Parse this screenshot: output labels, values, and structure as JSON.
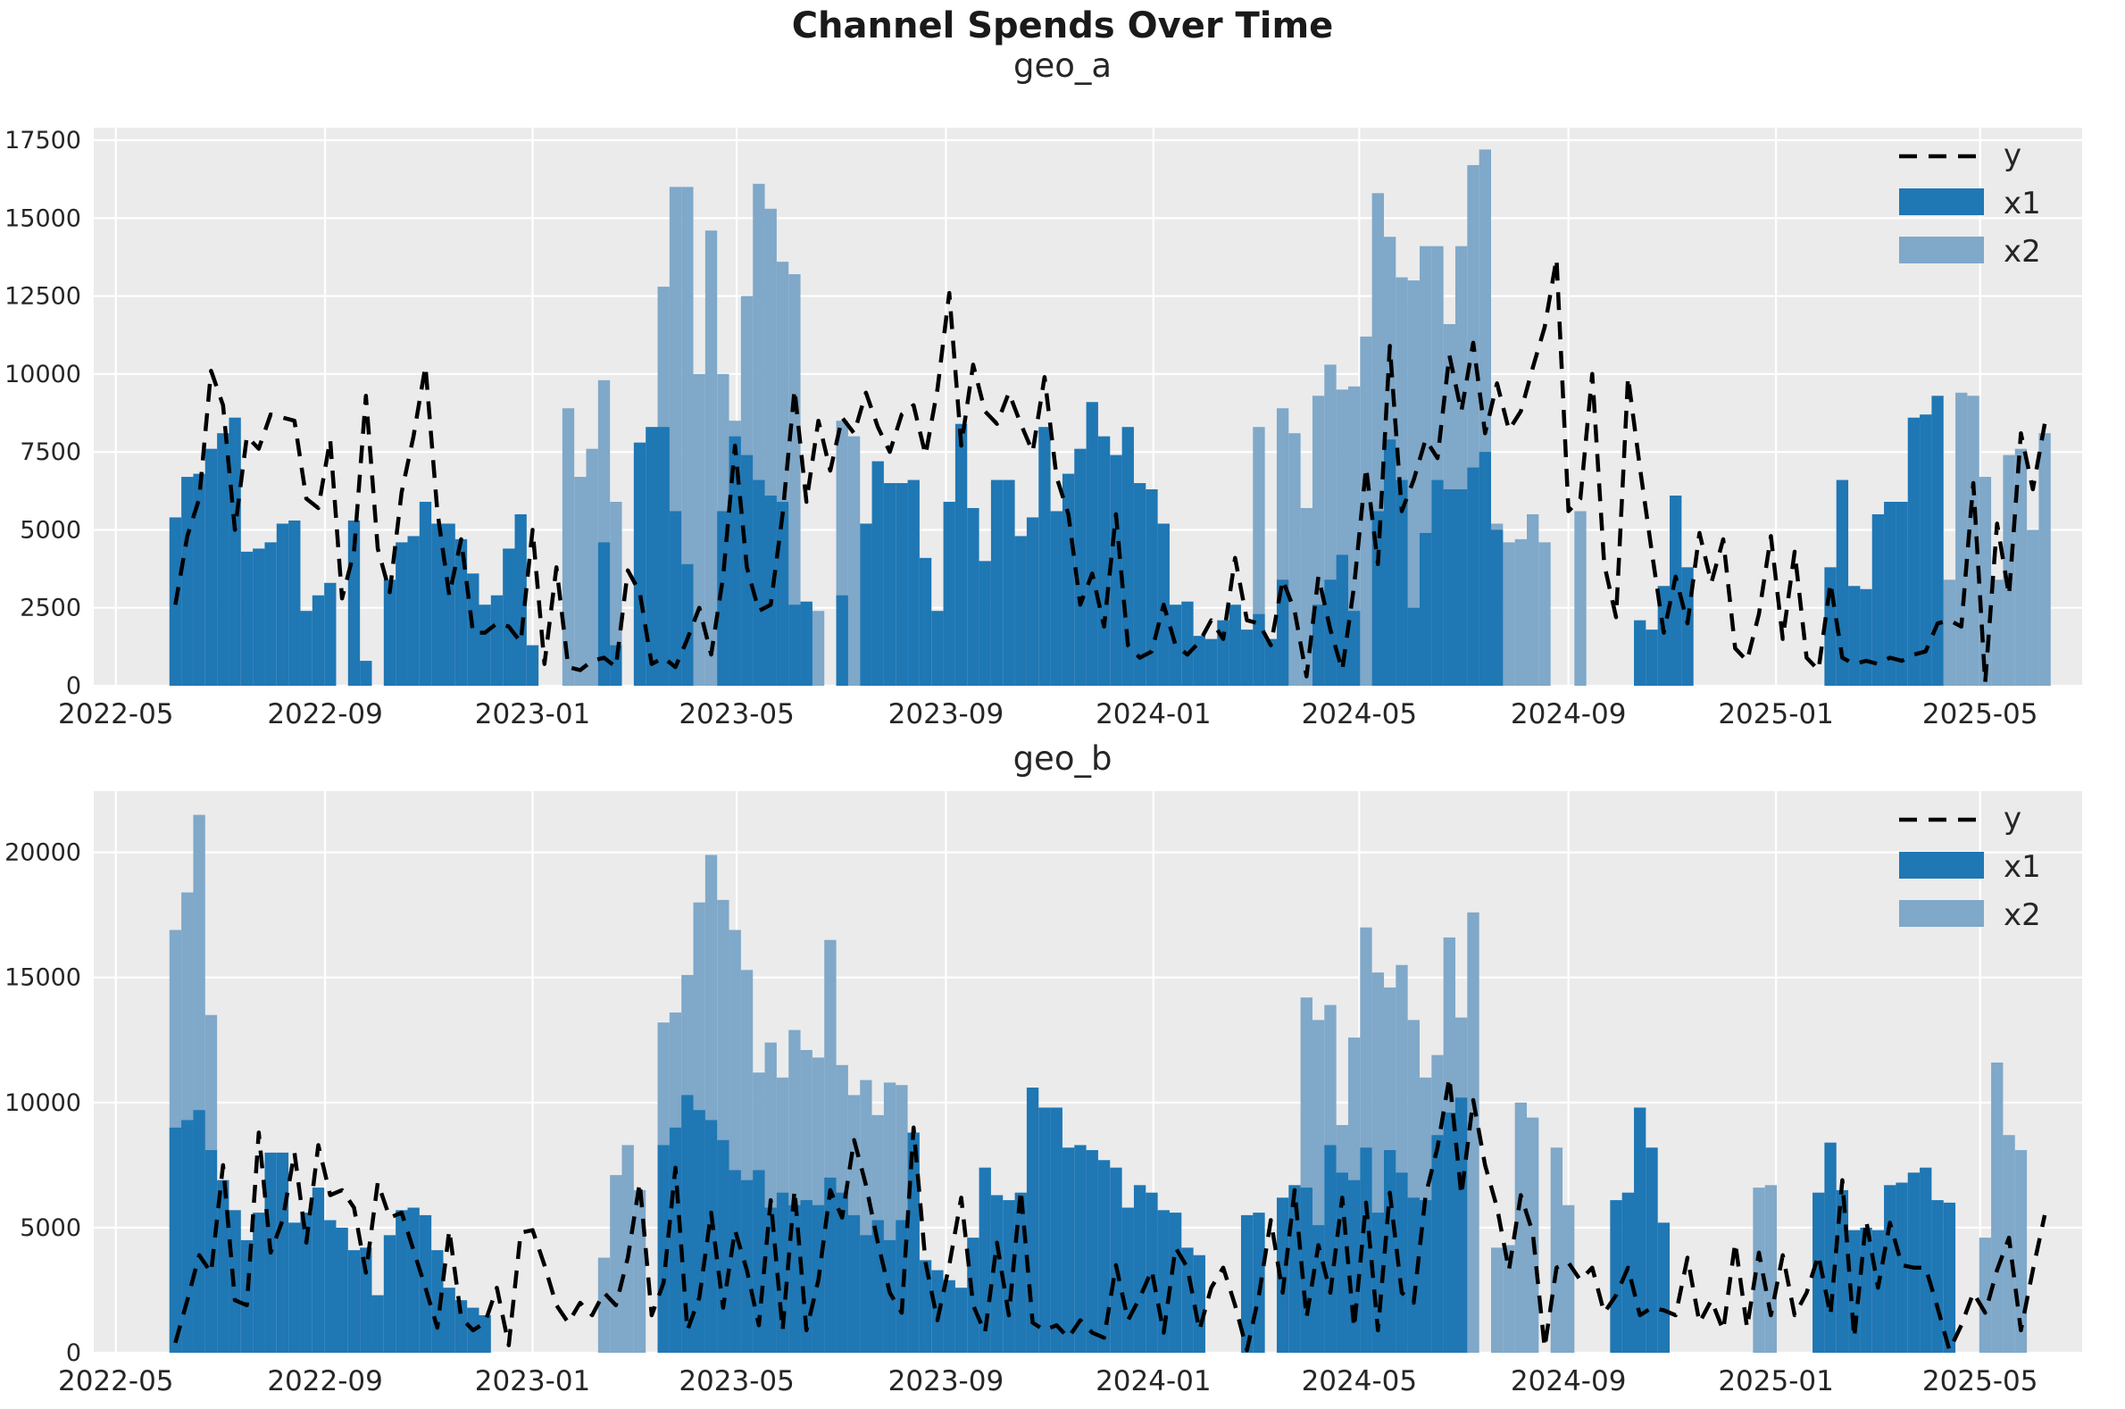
{
  "figure": {
    "title": "Channel Spends Over Time"
  },
  "colors": {
    "plot_background": "#ebebeb",
    "gridline": "#ffffff",
    "line_y": "#000000",
    "bar_x1": "#1f77b4",
    "bar_x2": "#7fa8c9",
    "tick_text": "#262626",
    "legend_text": "#262626"
  },
  "chart_data": [
    {
      "type": "bar",
      "title": "geo_a",
      "x_start": "2022-06-05",
      "x_step_days": 7,
      "x_axis_ticks": [
        "2022-05",
        "2022-09",
        "2023-01",
        "2023-05",
        "2023-09",
        "2024-01",
        "2024-05",
        "2024-09",
        "2025-01",
        "2025-05"
      ],
      "y_axis_ticks": [
        0,
        2500,
        5000,
        7500,
        10000,
        12500,
        15000,
        17500
      ],
      "ylim": [
        0,
        17900
      ],
      "grid": true,
      "legend_position": "upper-right",
      "legend": [
        "y",
        "x1",
        "x2"
      ],
      "series": [
        {
          "name": "y",
          "kind": "line",
          "values": [
            2600,
            4800,
            6000,
            10100,
            9000,
            5000,
            8000,
            7600,
            8700,
            8600,
            8500,
            6000,
            5700,
            7900,
            2800,
            4300,
            9300,
            4400,
            3000,
            6200,
            8000,
            10250,
            5600,
            2900,
            4700,
            1700,
            1700,
            2000,
            1900,
            1400,
            5000,
            700,
            3800,
            600,
            500,
            800,
            900,
            600,
            3700,
            3000,
            700,
            900,
            600,
            1500,
            2500,
            1000,
            3500,
            7700,
            3800,
            2400,
            2600,
            5500,
            9500,
            5900,
            8500,
            6900,
            8600,
            8100,
            9400,
            8300,
            7500,
            8700,
            9000,
            7400,
            9500,
            12600,
            7700,
            10300,
            8800,
            8400,
            9400,
            8400,
            7500,
            9900,
            6700,
            5500,
            2600,
            3600,
            1900,
            5500,
            1300,
            900,
            1100,
            2600,
            1300,
            1000,
            1400,
            2100,
            1500,
            4100,
            2100,
            2000,
            1300,
            3400,
            2400,
            300,
            3500,
            1800,
            500,
            3200,
            7000,
            3900,
            10900,
            5600,
            6600,
            7900,
            7300,
            10600,
            8800,
            11000,
            8100,
            9700,
            8200,
            8800,
            10200,
            11500,
            13700,
            5600,
            6000,
            10000,
            3900,
            2200,
            9900,
            7000,
            4300,
            1700,
            3500,
            2000,
            4900,
            3300,
            4700,
            1200,
            800,
            2300,
            4800,
            1500,
            4300,
            900,
            500,
            3300,
            900,
            700,
            800,
            700,
            900,
            800,
            1000,
            1100,
            2000,
            2100,
            1900,
            6500,
            100,
            5200,
            2900,
            8100,
            6300,
            8400
          ]
        },
        {
          "name": "x1",
          "kind": "bar",
          "values": [
            5400,
            6700,
            6800,
            7600,
            8100,
            8600,
            4300,
            4400,
            4600,
            5200,
            5300,
            2400,
            2900,
            3300,
            0,
            5300,
            800,
            0,
            3400,
            4600,
            4800,
            5900,
            5200,
            5200,
            4700,
            3600,
            2600,
            2900,
            4400,
            5500,
            1300,
            0,
            0,
            0,
            0,
            0,
            4600,
            1300,
            0,
            7800,
            8300,
            8300,
            5600,
            3900,
            0,
            0,
            5600,
            8000,
            7400,
            6600,
            6100,
            5900,
            2600,
            2700,
            0,
            0,
            2900,
            0,
            5200,
            7200,
            6500,
            6500,
            6600,
            4100,
            2400,
            5900,
            8400,
            5700,
            4000,
            6600,
            6600,
            4800,
            5400,
            8300,
            5600,
            6800,
            7600,
            9100,
            8000,
            7400,
            8300,
            6500,
            6300,
            5200,
            2600,
            2700,
            1600,
            1500,
            2100,
            2600,
            1800,
            2300,
            1500,
            3400,
            0,
            0,
            2600,
            3400,
            4200,
            2400,
            0,
            5600,
            7900,
            6600,
            2500,
            4900,
            6600,
            6300,
            6300,
            7000,
            7500,
            5000,
            0,
            0,
            0,
            0,
            0,
            0,
            0,
            0,
            0,
            0,
            0,
            2100,
            1800,
            3200,
            6100,
            3800,
            0,
            0,
            0,
            0,
            0,
            0,
            0,
            0,
            0,
            0,
            0,
            3800,
            6600,
            3200,
            3100,
            5500,
            5900,
            5900,
            8600,
            8700,
            9300,
            0,
            0,
            0,
            0,
            0,
            0,
            0,
            0,
            0
          ]
        },
        {
          "name": "x2",
          "kind": "bar",
          "values": [
            0,
            0,
            0,
            0,
            0,
            0,
            0,
            0,
            0,
            0,
            0,
            0,
            0,
            0,
            0,
            0,
            0,
            0,
            0,
            0,
            0,
            0,
            0,
            0,
            0,
            0,
            0,
            0,
            0,
            0,
            0,
            0,
            0,
            8900,
            6700,
            7600,
            9800,
            5900,
            0,
            0,
            0,
            12800,
            16000,
            16000,
            10000,
            14600,
            10000,
            8500,
            12500,
            16100,
            15300,
            13600,
            13200,
            2600,
            2400,
            0,
            8500,
            8000,
            0,
            0,
            0,
            0,
            0,
            0,
            0,
            0,
            0,
            0,
            0,
            0,
            0,
            0,
            0,
            0,
            0,
            0,
            0,
            0,
            0,
            0,
            0,
            0,
            0,
            0,
            0,
            0,
            0,
            0,
            0,
            0,
            0,
            8300,
            0,
            8900,
            8100,
            5700,
            9300,
            10300,
            9500,
            9600,
            11200,
            15800,
            14400,
            13100,
            13000,
            14100,
            14100,
            11600,
            14100,
            16700,
            17200,
            5200,
            4600,
            4700,
            5500,
            4600,
            0,
            0,
            5600,
            0,
            0,
            0,
            0,
            0,
            0,
            0,
            0,
            0,
            0,
            0,
            0,
            0,
            0,
            0,
            0,
            0,
            0,
            0,
            0,
            0,
            0,
            0,
            0,
            0,
            0,
            0,
            0,
            0,
            0,
            3400,
            9400,
            9300,
            6700,
            3400,
            7400,
            7600,
            5000,
            8100
          ]
        }
      ]
    },
    {
      "type": "bar",
      "title": "geo_b",
      "x_start": "2022-06-05",
      "x_step_days": 7,
      "x_axis_ticks": [
        "2022-05",
        "2022-09",
        "2023-01",
        "2023-05",
        "2023-09",
        "2024-01",
        "2024-05",
        "2024-09",
        "2025-01",
        "2025-05"
      ],
      "y_axis_ticks": [
        0,
        5000,
        10000,
        15000,
        20000
      ],
      "ylim": [
        0,
        22450
      ],
      "grid": true,
      "legend_position": "upper-right",
      "legend": [
        "y",
        "x1",
        "x2"
      ],
      "series": [
        {
          "name": "y",
          "kind": "line",
          "values": [
            400,
            2100,
            3900,
            3200,
            7500,
            2100,
            1900,
            8800,
            4000,
            5300,
            8000,
            4400,
            8300,
            6300,
            6500,
            5800,
            3200,
            6800,
            5400,
            5600,
            4100,
            2600,
            1000,
            4900,
            1400,
            900,
            1200,
            2600,
            300,
            4800,
            4900,
            3500,
            1900,
            1200,
            2000,
            1500,
            2400,
            1900,
            3800,
            6800,
            1500,
            2800,
            7400,
            900,
            2200,
            5600,
            1800,
            4900,
            3300,
            1100,
            6100,
            900,
            6500,
            900,
            2900,
            6500,
            5400,
            8500,
            6700,
            4400,
            2400,
            1600,
            9000,
            3600,
            1300,
            3500,
            6200,
            1900,
            800,
            4400,
            1500,
            6500,
            1200,
            900,
            1100,
            600,
            1300,
            800,
            600,
            3500,
            1300,
            2200,
            3300,
            800,
            4200,
            3400,
            900,
            2600,
            3400,
            1900,
            100,
            2300,
            5300,
            2400,
            6500,
            1400,
            4300,
            2400,
            6200,
            1000,
            6000,
            900,
            6400,
            2400,
            2000,
            6300,
            8200,
            11000,
            6300,
            10100,
            7500,
            5800,
            3300,
            6300,
            4800,
            200,
            3400,
            3600,
            2900,
            3400,
            1600,
            2300,
            3400,
            1500,
            1800,
            1700,
            1500,
            3800,
            1200,
            2100,
            900,
            4400,
            1000,
            4000,
            1500,
            3900,
            1500,
            2400,
            3900,
            1500,
            6900,
            600,
            5300,
            2600,
            5200,
            3500,
            3400,
            3400,
            1800,
            100,
            1100,
            2400,
            1600,
            3300,
            4600,
            900,
            3300,
            5500
          ]
        },
        {
          "name": "x1",
          "kind": "bar",
          "values": [
            9000,
            9300,
            9700,
            8100,
            6900,
            5700,
            4500,
            5600,
            8000,
            8000,
            5200,
            5600,
            6600,
            5300,
            5000,
            4100,
            4200,
            2300,
            4700,
            5700,
            5800,
            5500,
            4100,
            2600,
            2100,
            1800,
            1500,
            0,
            0,
            0,
            0,
            0,
            0,
            0,
            0,
            0,
            0,
            0,
            0,
            0,
            0,
            8300,
            9000,
            10300,
            9700,
            9300,
            8500,
            7300,
            6900,
            7300,
            5800,
            6400,
            5900,
            6100,
            5900,
            7000,
            6400,
            5500,
            4700,
            5300,
            4500,
            5300,
            8800,
            3700,
            3300,
            2900,
            2600,
            4600,
            7400,
            6300,
            6100,
            6400,
            10600,
            9800,
            9800,
            8200,
            8300,
            8100,
            7700,
            7400,
            5800,
            6700,
            6400,
            5700,
            5600,
            4200,
            3900,
            0,
            0,
            0,
            5500,
            5600,
            0,
            6200,
            6700,
            6600,
            5100,
            8300,
            7200,
            6900,
            8200,
            5600,
            8100,
            7200,
            6200,
            6100,
            8700,
            9600,
            10200,
            0,
            0,
            0,
            0,
            0,
            0,
            0,
            0,
            0,
            0,
            0,
            0,
            6100,
            6400,
            9800,
            8200,
            5200,
            0,
            0,
            0,
            0,
            0,
            0,
            0,
            0,
            0,
            0,
            0,
            0,
            6400,
            8400,
            6500,
            4900,
            5000,
            4900,
            6700,
            6800,
            7200,
            7400,
            6100,
            6000,
            0,
            0,
            0,
            0,
            0,
            0,
            0,
            0
          ]
        },
        {
          "name": "x2",
          "kind": "bar",
          "values": [
            16900,
            18400,
            21500,
            13500,
            0,
            0,
            0,
            0,
            0,
            0,
            0,
            0,
            0,
            0,
            0,
            0,
            0,
            0,
            0,
            0,
            0,
            0,
            0,
            0,
            0,
            0,
            0,
            0,
            0,
            0,
            0,
            0,
            0,
            0,
            0,
            0,
            3800,
            7100,
            8300,
            6500,
            0,
            13200,
            13600,
            15100,
            18000,
            19900,
            18100,
            16900,
            15300,
            11200,
            12400,
            11000,
            12900,
            12100,
            11800,
            16500,
            11500,
            10300,
            10900,
            9500,
            10800,
            10700,
            0,
            0,
            0,
            0,
            0,
            0,
            0,
            0,
            0,
            0,
            0,
            0,
            0,
            0,
            0,
            0,
            0,
            0,
            0,
            0,
            0,
            0,
            0,
            0,
            0,
            0,
            0,
            0,
            0,
            0,
            0,
            0,
            0,
            14200,
            13300,
            13900,
            9100,
            12600,
            17000,
            15200,
            14600,
            15500,
            13300,
            11000,
            11900,
            16600,
            13400,
            17600,
            0,
            4200,
            4300,
            10000,
            9400,
            0,
            8200,
            5900,
            0,
            0,
            0,
            0,
            0,
            0,
            0,
            0,
            0,
            0,
            0,
            0,
            0,
            0,
            0,
            6600,
            6700,
            0,
            0,
            0,
            0,
            0,
            0,
            0,
            0,
            0,
            0,
            0,
            0,
            0,
            0,
            0,
            0,
            0,
            4600,
            11600,
            8700,
            8100,
            0,
            0
          ]
        }
      ]
    }
  ]
}
